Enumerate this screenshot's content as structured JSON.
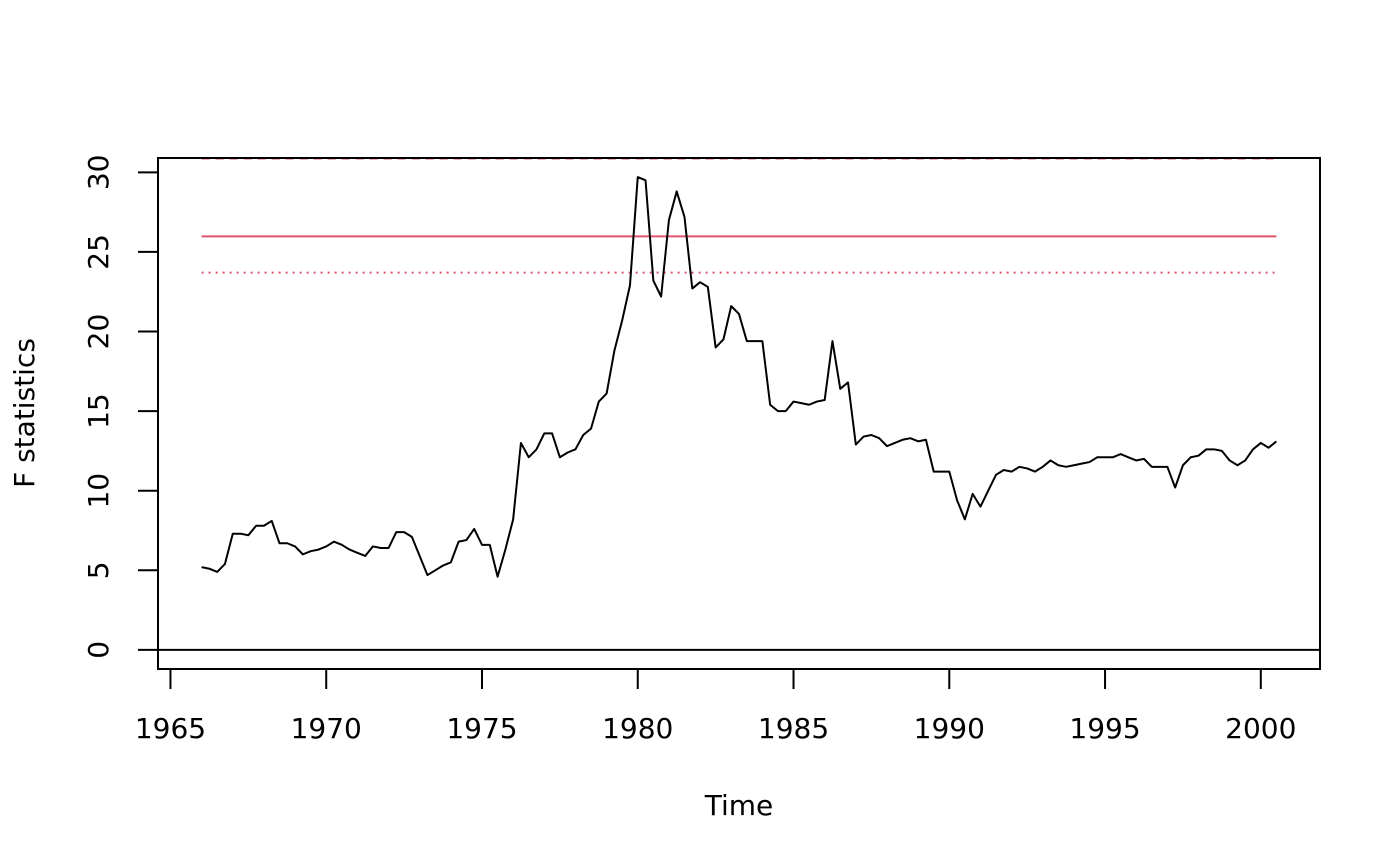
{
  "chart_data": {
    "type": "line",
    "title": "",
    "xlabel": "Time",
    "ylabel": "F statistics",
    "xlim": [
      1964.6,
      2001.9
    ],
    "ylim": [
      -1.2,
      30.9
    ],
    "x_ticks": [
      1965,
      1970,
      1975,
      1980,
      1985,
      1990,
      1995,
      2000
    ],
    "y_ticks": [
      0,
      5,
      10,
      15,
      20,
      25,
      30
    ],
    "grid": false,
    "legend": "none",
    "start": 1966.0,
    "step": 0.25,
    "series": [
      {
        "color": "#000000",
        "values": [
          5.2,
          5.1,
          4.9,
          5.4,
          7.3,
          7.3,
          7.2,
          7.8,
          7.8,
          8.1,
          6.7,
          6.7,
          6.5,
          6.0,
          6.2,
          6.3,
          6.5,
          6.8,
          6.6,
          6.3,
          6.1,
          5.9,
          6.5,
          6.4,
          6.4,
          7.4,
          7.4,
          7.1,
          5.9,
          4.7,
          5.0,
          5.3,
          5.5,
          6.8,
          6.9,
          7.6,
          6.6,
          6.6,
          4.6,
          6.3,
          8.2,
          13.0,
          12.1,
          12.6,
          13.6,
          13.6,
          12.1,
          12.4,
          12.6,
          13.5,
          13.9,
          15.6,
          16.1,
          18.8,
          20.7,
          22.9,
          29.7,
          29.5,
          23.2,
          22.2,
          27.0,
          28.8,
          27.2,
          22.7,
          23.1,
          22.8,
          19.0,
          19.5,
          21.6,
          21.1,
          19.4,
          19.4,
          19.4,
          15.4,
          15.0,
          15.0,
          15.6,
          15.5,
          15.4,
          15.6,
          15.7,
          19.4,
          16.4,
          16.8,
          12.9,
          13.4,
          13.5,
          13.3,
          12.8,
          13.0,
          13.2,
          13.3,
          13.1,
          13.2,
          11.2,
          11.2,
          11.2,
          9.4,
          8.2,
          9.8,
          9.0,
          10.0,
          11.0,
          11.3,
          11.2,
          11.5,
          11.4,
          11.2,
          11.5,
          11.9,
          11.6,
          11.5,
          11.6,
          11.7,
          11.8,
          12.1,
          12.1,
          12.1,
          12.3,
          12.1,
          11.9,
          12.0,
          11.5,
          11.5,
          11.5,
          10.2,
          11.6,
          12.1,
          12.2,
          12.6,
          12.6,
          12.5,
          11.9,
          11.6,
          11.9,
          12.6,
          13.0,
          12.7,
          13.1
        ]
      }
    ],
    "reference_lines": [
      {
        "y": 0,
        "color": "#000000",
        "style": "solid",
        "span": "full"
      },
      {
        "y": 25.98,
        "color": "#DF536B",
        "style": "solid",
        "span": "data"
      },
      {
        "y": 23.7,
        "color": "#DF536B",
        "style": "dotted",
        "span": "data"
      },
      {
        "y": 30.87,
        "color": "#DF536B",
        "style": "dashed",
        "span": "data"
      }
    ]
  }
}
